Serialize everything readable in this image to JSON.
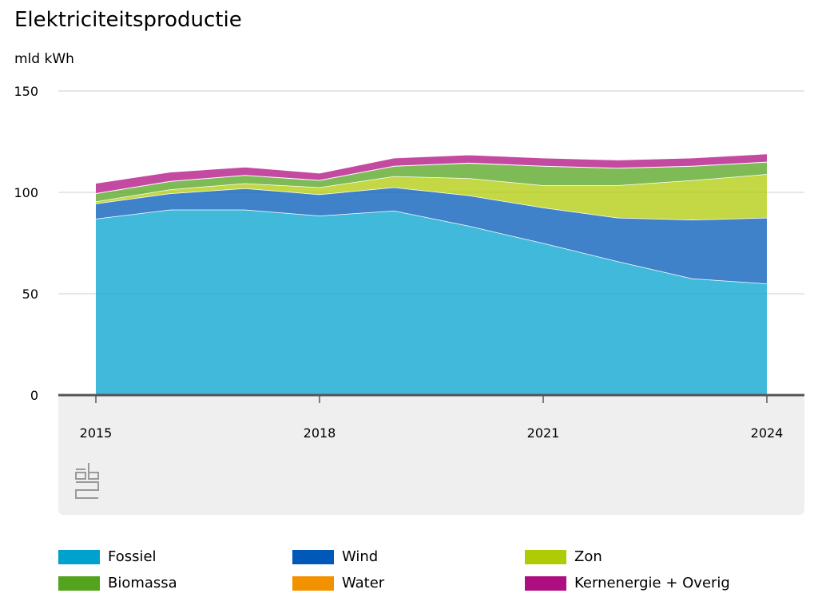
{
  "title": "Elektriciteitsproductie",
  "unit": "mld kWh",
  "logo_text": "cbs",
  "chart_data": {
    "type": "area",
    "stacked": true,
    "title": "Elektriciteitsproductie",
    "ylabel": "mld kWh",
    "xlabel": "",
    "x": [
      2015,
      2016,
      2017,
      2018,
      2019,
      2020,
      2021,
      2022,
      2023,
      2024
    ],
    "x_ticks": [
      "2015",
      "2018",
      "2021",
      "2024"
    ],
    "y_ticks": [
      "0",
      "50",
      "100",
      "150"
    ],
    "ylim": [
      0,
      150
    ],
    "grid": true,
    "legend_position": "bottom",
    "series": [
      {
        "name": "Fossiel",
        "color": "#00a1cd",
        "values": [
          87,
          91.5,
          91.5,
          88.5,
          91,
          83.5,
          75,
          66,
          57.5,
          55
        ]
      },
      {
        "name": "Wind",
        "color": "#0058b8",
        "values": [
          7.5,
          8,
          10.5,
          10.5,
          11.5,
          15,
          17.5,
          21.5,
          29,
          32.5
        ]
      },
      {
        "name": "Zon",
        "color": "#afcb05",
        "values": [
          1,
          2,
          2.5,
          3.5,
          5.5,
          8.5,
          11,
          16,
          19.5,
          21.5
        ]
      },
      {
        "name": "Biomassa",
        "color": "#53a31d",
        "values": [
          4,
          4,
          4,
          3.5,
          5,
          7.5,
          9.5,
          8.5,
          7,
          6
        ]
      },
      {
        "name": "Water",
        "color": "#f39200",
        "values": [
          0.1,
          0.1,
          0.1,
          0.1,
          0.1,
          0.1,
          0.1,
          0.1,
          0.1,
          0.1
        ]
      },
      {
        "name": "Kernenergie + Overig",
        "color": "#af0e80",
        "values": [
          5,
          4.5,
          4,
          3.5,
          4,
          4,
          4,
          4,
          4,
          4
        ]
      }
    ]
  }
}
